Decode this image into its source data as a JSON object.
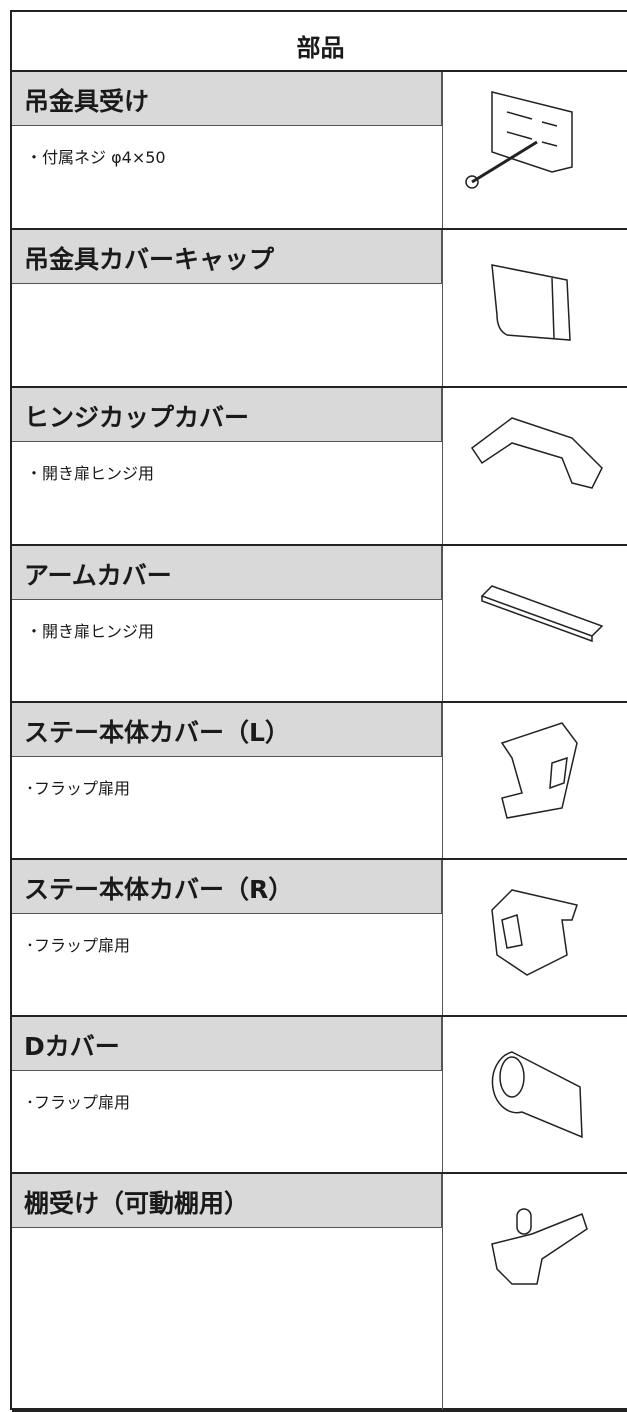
{
  "header": {
    "title": "部品"
  },
  "rows": [
    {
      "name": "吊金具受け",
      "note": "・付属ネジ φ4×50"
    },
    {
      "name": "吊金具カバーキャップ"
    },
    {
      "name": "ヒンジカップカバー",
      "note": "・開き扉ヒンジ用"
    },
    {
      "name": "アームカバー",
      "note": "・開き扉ヒンジ用"
    },
    {
      "name": "ステー本体カバー（L）",
      "note": "･フラップ扉用"
    },
    {
      "name": "ステー本体カバー（R）",
      "note": "･フラップ扉用"
    },
    {
      "name": "Dカバー",
      "note": "･フラップ扉用"
    },
    {
      "name": "棚受け（可動棚用）"
    }
  ]
}
